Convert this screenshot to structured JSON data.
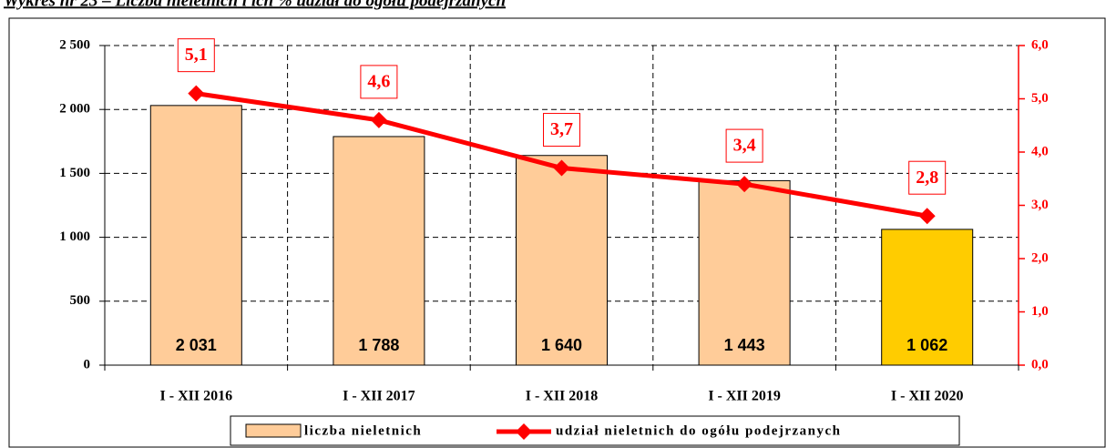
{
  "chart_data": {
    "type": "bar",
    "title": "Wykres nr 23 – Liczba nieletnich i ich % udział do ogółu podejrzanych",
    "categories": [
      "I - XII 2016",
      "I - XII 2017",
      "I - XII 2018",
      "I - XII 2019",
      "I - XII 2020"
    ],
    "series": [
      {
        "name": "liczba nieletnich",
        "type": "bar",
        "color": "#ffcc99",
        "colors": [
          "#ffcc99",
          "#ffcc99",
          "#ffcc99",
          "#ffcc99",
          "#ffcc00"
        ],
        "values": [
          2031,
          1788,
          1640,
          1443,
          1062
        ],
        "value_labels": [
          "2 031",
          "1 788",
          "1 640",
          "1 443",
          "1 062"
        ]
      },
      {
        "name": "udział nieletnich do ogółu podejrzanych",
        "type": "line",
        "axis": "y2",
        "color": "#ff0000",
        "values": [
          5.1,
          4.6,
          3.7,
          3.4,
          2.8
        ],
        "value_labels": [
          "5,1",
          "4,6",
          "3,7",
          "3,4",
          "2,8"
        ]
      }
    ],
    "ylim": [
      0,
      2500
    ],
    "yticks": [
      0,
      500,
      {
        "value": 1000,
        "label": "1 000"
      },
      {
        "value": 1500,
        "label": "1 500"
      },
      {
        "value": 2000,
        "label": "2 000"
      },
      {
        "value": 2500,
        "label": "2 500"
      }
    ],
    "y2lim": [
      0,
      6
    ],
    "y2ticks": [
      {
        "value": 0,
        "label": "0,0"
      },
      {
        "value": 1,
        "label": "1,0"
      },
      {
        "value": 2,
        "label": "2,0"
      },
      {
        "value": 3,
        "label": "3,0"
      },
      {
        "value": 4,
        "label": "4,0"
      },
      {
        "value": 5,
        "label": "5,0"
      },
      {
        "value": 6,
        "label": "6,0"
      }
    ],
    "grid": true,
    "legend": "bottom"
  }
}
